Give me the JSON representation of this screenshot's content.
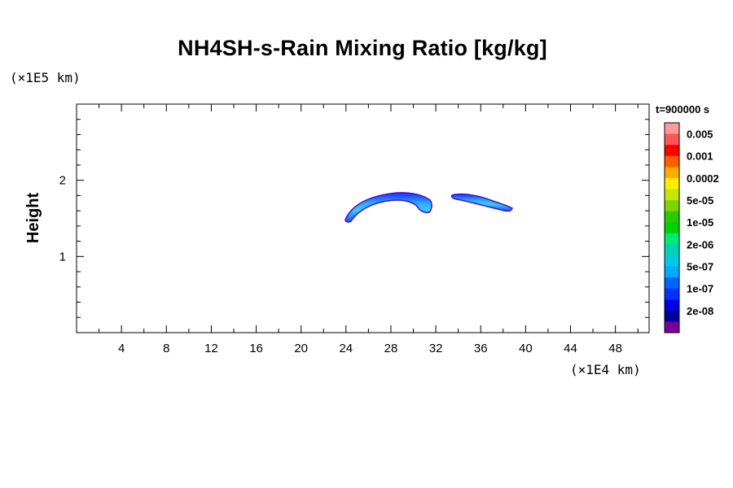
{
  "chart_data": {
    "type": "heatmap",
    "title": "NH4SH-s-Rain Mixing Ratio [kg/kg]",
    "ylabel": "Height",
    "y_unit_label": "(×1E5 km)",
    "x_unit_label": "(×1E4 km)",
    "time_label": "t=900000 s",
    "xlim": [
      0,
      51
    ],
    "ylim": [
      0,
      3
    ],
    "x_ticks": [
      "4",
      "8",
      "12",
      "16",
      "20",
      "24",
      "28",
      "32",
      "36",
      "40",
      "44",
      "48"
    ],
    "y_ticks": [
      "1",
      "2"
    ],
    "colorbar": {
      "labels": [
        "0.005",
        "0.001",
        "0.0002",
        "5e-05",
        "1e-05",
        "2e-06",
        "5e-07",
        "1e-07",
        "2e-08"
      ],
      "colors": [
        "#ff9a9a",
        "#ff5555",
        "#ff0000",
        "#ff5f00",
        "#ffaa00",
        "#ffee00",
        "#c8e600",
        "#7ed600",
        "#2dc800",
        "#00d200",
        "#00e878",
        "#00d2b4",
        "#00c8e6",
        "#00aaff",
        "#0064ff",
        "#0032ff",
        "#0000e6",
        "#000096",
        "#780096"
      ]
    },
    "features": [
      {
        "name": "western arc",
        "x_range": [
          24,
          31.5
        ],
        "y_range": [
          1.45,
          1.83
        ]
      },
      {
        "name": "eastern arc",
        "x_range": [
          33.8,
          38.8
        ],
        "y_range": [
          1.6,
          1.78
        ]
      }
    ]
  }
}
